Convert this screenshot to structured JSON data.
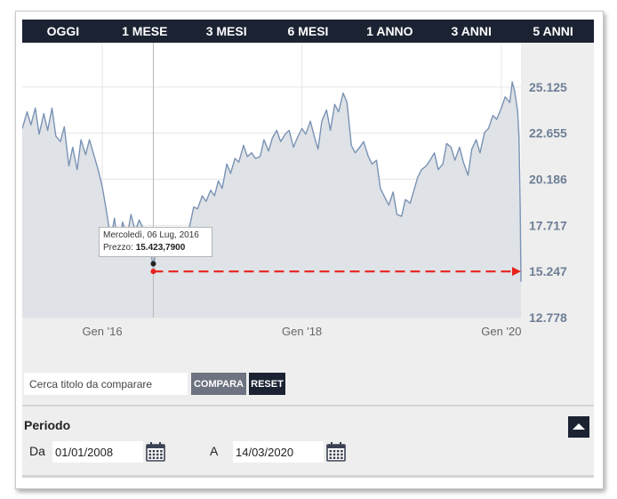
{
  "tabs": [
    {
      "label": "OGGI"
    },
    {
      "label": "1 MESE"
    },
    {
      "label": "3 MESI"
    },
    {
      "label": "6 MESI"
    },
    {
      "label": "1 ANNO"
    },
    {
      "label": "3 ANNI"
    },
    {
      "label": "5 ANNI"
    }
  ],
  "chart_data": {
    "type": "area",
    "title": "",
    "xlabel": "",
    "ylabel": "",
    "x_range": [
      "2015-03-14",
      "2020-03-13"
    ],
    "ylim": [
      12778,
      27500
    ],
    "y_ticks": [
      12778,
      15247,
      17717,
      20186,
      22655,
      25125
    ],
    "y_tick_labels": [
      "12.778",
      "15.247",
      "17.717",
      "20.186",
      "22.655",
      "25.125"
    ],
    "x_ticks": [
      {
        "date": "2016-01-01",
        "label": "Gen '16"
      },
      {
        "date": "2018-01-01",
        "label": "Gen '18"
      },
      {
        "date": "2020-01-01",
        "label": "Gen '20"
      }
    ],
    "grid": true,
    "legend": "none",
    "line_color": "#7a93b5",
    "fill_color": "#dfe2e6",
    "series": [
      {
        "x": [
          "2015-03-14",
          "2015-04-01",
          "2015-04-15",
          "2015-05-01",
          "2015-05-15",
          "2015-06-01",
          "2015-06-15",
          "2015-07-01",
          "2015-07-15",
          "2015-08-01",
          "2015-08-15",
          "2015-09-01",
          "2015-09-15",
          "2015-10-01",
          "2015-10-15",
          "2015-11-01",
          "2015-11-15",
          "2015-12-01",
          "2015-12-15",
          "2016-01-01",
          "2016-01-15",
          "2016-02-01",
          "2016-02-15",
          "2016-03-01",
          "2016-03-15",
          "2016-04-01",
          "2016-04-15",
          "2016-05-01",
          "2016-05-15",
          "2016-06-01",
          "2016-06-15",
          "2016-06-27",
          "2016-07-06",
          "2016-07-20",
          "2016-08-01",
          "2016-08-15",
          "2016-09-01",
          "2016-09-15",
          "2016-10-01",
          "2016-10-15",
          "2016-11-01",
          "2016-11-15",
          "2016-12-01",
          "2016-12-15",
          "2017-01-01",
          "2017-01-15",
          "2017-02-01",
          "2017-02-15",
          "2017-03-01",
          "2017-03-15",
          "2017-04-01",
          "2017-04-15",
          "2017-05-01",
          "2017-05-15",
          "2017-06-01",
          "2017-06-15",
          "2017-07-01",
          "2017-07-15",
          "2017-08-01",
          "2017-08-15",
          "2017-09-01",
          "2017-09-15",
          "2017-10-01",
          "2017-10-15",
          "2017-11-01",
          "2017-11-15",
          "2017-12-01",
          "2017-12-15",
          "2018-01-01",
          "2018-01-15",
          "2018-02-01",
          "2018-02-15",
          "2018-03-01",
          "2018-03-15",
          "2018-04-01",
          "2018-04-15",
          "2018-05-01",
          "2018-05-15",
          "2018-06-01",
          "2018-06-15",
          "2018-07-01",
          "2018-07-15",
          "2018-08-01",
          "2018-08-15",
          "2018-09-01",
          "2018-09-15",
          "2018-10-01",
          "2018-10-15",
          "2018-11-01",
          "2018-11-15",
          "2018-12-01",
          "2018-12-15",
          "2019-01-01",
          "2019-01-15",
          "2019-02-01",
          "2019-02-15",
          "2019-03-01",
          "2019-03-15",
          "2019-04-01",
          "2019-04-15",
          "2019-05-01",
          "2019-05-15",
          "2019-06-01",
          "2019-06-15",
          "2019-07-01",
          "2019-07-15",
          "2019-08-01",
          "2019-08-15",
          "2019-09-01",
          "2019-09-15",
          "2019-10-01",
          "2019-10-15",
          "2019-11-01",
          "2019-11-15",
          "2019-12-01",
          "2019-12-15",
          "2020-01-01",
          "2020-01-15",
          "2020-02-01",
          "2020-02-10",
          "2020-02-19",
          "2020-03-01",
          "2020-03-06",
          "2020-03-10",
          "2020-03-13"
        ],
        "values": [
          22900,
          23800,
          23100,
          24000,
          22600,
          23700,
          22800,
          24000,
          22500,
          22200,
          23000,
          20900,
          21900,
          20700,
          22300,
          21500,
          22300,
          21500,
          20800,
          19800,
          18600,
          17000,
          18100,
          16200,
          17900,
          17100,
          18300,
          17400,
          18000,
          17500,
          17300,
          16300,
          15424,
          16900,
          16500,
          17500,
          16300,
          17100,
          16400,
          17300,
          16700,
          17600,
          18700,
          18600,
          19300,
          19000,
          19600,
          19300,
          20100,
          19700,
          21000,
          20500,
          21300,
          21100,
          22000,
          21400,
          21600,
          21300,
          21400,
          22300,
          21700,
          22400,
          22800,
          22200,
          22600,
          22800,
          21900,
          22400,
          22900,
          22600,
          23300,
          22500,
          21800,
          23300,
          23900,
          22800,
          24200,
          23800,
          24800,
          24300,
          22000,
          21600,
          21900,
          22200,
          21400,
          21000,
          21200,
          19700,
          19200,
          18800,
          19500,
          18300,
          18200,
          19100,
          18900,
          19600,
          20300,
          20700,
          20900,
          21200,
          21600,
          20700,
          21000,
          22100,
          21900,
          21200,
          21900,
          21100,
          20400,
          21800,
          22300,
          21600,
          22700,
          22900,
          23600,
          23400,
          24000,
          24600,
          24300,
          25400,
          24900,
          23800,
          22400,
          18800,
          14700
        ]
      }
    ],
    "tooltip": {
      "date_label": "Mercoledì, 06 Lug, 2016",
      "price_prefix": "Prezzo:",
      "price_value": "15.423,7900",
      "x": "2016-07-06",
      "y": 15424
    },
    "reference_line": {
      "from_date": "2016-07-06",
      "to_date": "2020-03-13",
      "y": 15247,
      "color": "#e8211d"
    },
    "crosshair_date": "2016-07-06"
  },
  "compare": {
    "placeholder": "Cerca titolo da comparare",
    "compare_label": "COMPARA",
    "reset_label": "RESET"
  },
  "period": {
    "title": "Periodo",
    "from_label": "Da",
    "from_value": "01/01/2008",
    "to_label": "A",
    "to_value": "14/03/2020"
  },
  "colors": {
    "tab_bar": "#1b2232",
    "compare_button": "#6d7380",
    "axis_label": "#6e7f96"
  }
}
